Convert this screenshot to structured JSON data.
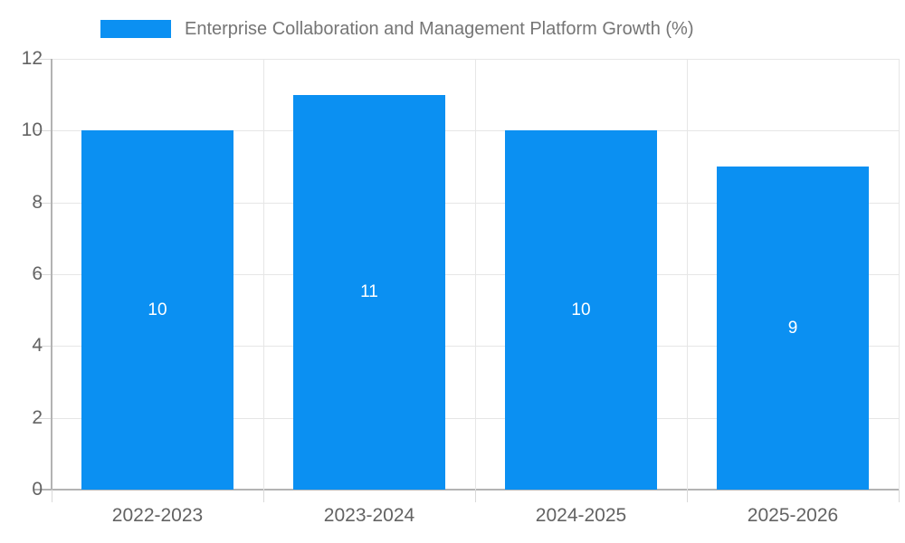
{
  "legend": {
    "label": "Enterprise Collaboration and Management Platform Growth (%)"
  },
  "chart_data": {
    "type": "bar",
    "title": "Enterprise Collaboration and Management Platform Growth (%)",
    "categories": [
      "2022-2023",
      "2023-2024",
      "2024-2025",
      "2025-2026"
    ],
    "values": [
      10,
      11,
      10,
      9
    ],
    "series": [
      {
        "name": "Enterprise Collaboration and Management Platform Growth (%)",
        "values": [
          10,
          11,
          10,
          9
        ]
      }
    ],
    "bar_labels": [
      "10",
      "11",
      "10",
      "9"
    ],
    "xlabel": "",
    "ylabel": "",
    "ylim": [
      0,
      12
    ],
    "y_ticks": [
      0,
      2,
      4,
      6,
      8,
      10,
      12
    ],
    "grid": true,
    "legend_position": "top"
  },
  "colors": {
    "bar": "#0b90f2",
    "bar_label": "#ffffff",
    "grid": "#e6e6e6",
    "tick_extension": "#d9d9d9",
    "axis": "#b3b3b3",
    "tick_label": "#636363",
    "legend_text": "#757575",
    "background": "#ffffff"
  }
}
